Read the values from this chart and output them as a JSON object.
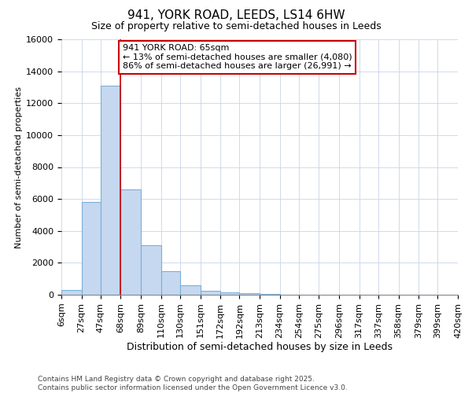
{
  "title_line1": "941, YORK ROAD, LEEDS, LS14 6HW",
  "title_line2": "Size of property relative to semi-detached houses in Leeds",
  "xlabel": "Distribution of semi-detached houses by size in Leeds",
  "ylabel": "Number of semi-detached properties",
  "footer_line1": "Contains HM Land Registry data © Crown copyright and database right 2025.",
  "footer_line2": "Contains public sector information licensed under the Open Government Licence v3.0.",
  "annotation_line1": "941 YORK ROAD: 65sqm",
  "annotation_line2": "← 13% of semi-detached houses are smaller (4,080)",
  "annotation_line3": "86% of semi-detached houses are larger (26,991) →",
  "bar_edges": [
    6,
    27,
    47,
    68,
    89,
    110,
    130,
    151,
    172,
    192,
    213,
    234,
    254,
    275,
    296,
    317,
    337,
    358,
    379,
    399,
    420
  ],
  "bar_heights": [
    300,
    5800,
    13100,
    6600,
    3100,
    1500,
    600,
    250,
    150,
    100,
    50,
    20,
    10,
    5,
    3,
    2,
    1,
    0,
    0,
    0
  ],
  "bar_color": "#c5d8f0",
  "bar_edge_color": "#7ab0d8",
  "vline_x": 68,
  "vline_color": "#cc0000",
  "ylim": [
    0,
    16000
  ],
  "yticks": [
    0,
    2000,
    4000,
    6000,
    8000,
    10000,
    12000,
    14000,
    16000
  ],
  "grid_color": "#c8d4e8",
  "bg_color": "#ffffff",
  "title_fontsize": 11,
  "subtitle_fontsize": 9,
  "ylabel_fontsize": 8,
  "xlabel_fontsize": 9,
  "tick_fontsize": 8,
  "footer_fontsize": 6.5,
  "ann_fontsize": 8
}
